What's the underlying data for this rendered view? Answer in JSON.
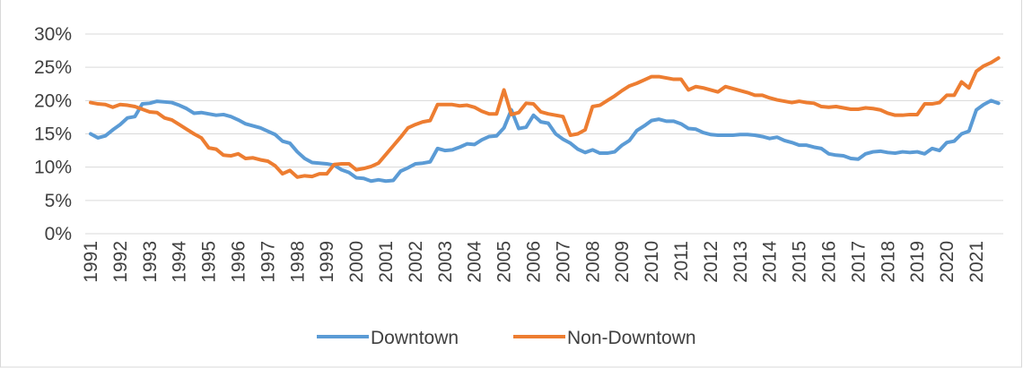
{
  "chart_data": {
    "type": "line",
    "categories": [
      "1991",
      null,
      null,
      null,
      "1992",
      null,
      null,
      null,
      "1993",
      null,
      null,
      null,
      "1994",
      null,
      null,
      null,
      "1995",
      null,
      null,
      null,
      "1996",
      null,
      null,
      null,
      "1997",
      null,
      null,
      null,
      "1998",
      null,
      null,
      null,
      "1999",
      null,
      null,
      null,
      "2000",
      null,
      null,
      null,
      "2001",
      null,
      null,
      null,
      "2002",
      null,
      null,
      null,
      "2003",
      null,
      null,
      null,
      "2004",
      null,
      null,
      null,
      "2005",
      null,
      null,
      null,
      "2006",
      null,
      null,
      null,
      "2007",
      null,
      null,
      null,
      "2008",
      null,
      null,
      null,
      "2009",
      null,
      null,
      null,
      "2010",
      null,
      null,
      null,
      "2011",
      null,
      null,
      null,
      "2012",
      null,
      null,
      null,
      "2013",
      null,
      null,
      null,
      "2014",
      null,
      null,
      null,
      "2015",
      null,
      null,
      null,
      "2016",
      null,
      null,
      null,
      "2017",
      null,
      null,
      null,
      "2018",
      null,
      null,
      null,
      "2019",
      null,
      null,
      null,
      "2020",
      null,
      null,
      null,
      "2021",
      null,
      null,
      null
    ],
    "series": [
      {
        "name": "Downtown",
        "color": "#5b9bd5",
        "values": [
          15.0,
          14.4,
          14.7,
          15.6,
          16.4,
          17.4,
          17.6,
          19.5,
          19.6,
          19.9,
          19.8,
          19.7,
          19.3,
          18.8,
          18.1,
          18.2,
          18.0,
          17.8,
          17.9,
          17.6,
          17.1,
          16.5,
          16.2,
          15.9,
          15.4,
          14.9,
          13.9,
          13.6,
          12.3,
          11.3,
          10.7,
          10.6,
          10.5,
          10.3,
          9.6,
          9.2,
          8.4,
          8.3,
          7.9,
          8.1,
          7.9,
          8.0,
          9.4,
          9.9,
          10.5,
          10.6,
          10.8,
          12.8,
          12.5,
          12.6,
          13.0,
          13.5,
          13.4,
          14.1,
          14.6,
          14.7,
          15.9,
          18.6,
          15.8,
          16.0,
          17.8,
          16.8,
          16.6,
          15.0,
          14.2,
          13.6,
          12.7,
          12.2,
          12.6,
          12.1,
          12.1,
          12.3,
          13.3,
          14.0,
          15.5,
          16.2,
          17.0,
          17.2,
          16.9,
          16.9,
          16.5,
          15.8,
          15.7,
          15.2,
          14.9,
          14.8,
          14.8,
          14.8,
          14.9,
          14.9,
          14.8,
          14.6,
          14.3,
          14.5,
          14.0,
          13.7,
          13.3,
          13.3,
          13.0,
          12.8,
          12.0,
          11.8,
          11.7,
          11.3,
          11.2,
          12.0,
          12.3,
          12.4,
          12.2,
          12.1,
          12.3,
          12.2,
          12.3,
          12.0,
          12.8,
          12.5,
          13.7,
          13.9,
          15.0,
          15.4,
          18.6,
          19.4,
          20.0,
          19.6
        ]
      },
      {
        "name": "Non-Downtown",
        "color": "#ed7d31",
        "values": [
          19.7,
          19.5,
          19.4,
          19.0,
          19.4,
          19.3,
          19.1,
          18.7,
          18.3,
          18.2,
          17.4,
          17.1,
          16.4,
          15.7,
          15.0,
          14.4,
          12.9,
          12.7,
          11.8,
          11.7,
          12.0,
          11.3,
          11.4,
          11.1,
          10.9,
          10.2,
          9.0,
          9.5,
          8.5,
          8.7,
          8.6,
          9.0,
          9.0,
          10.4,
          10.5,
          10.5,
          9.6,
          9.8,
          10.1,
          10.6,
          11.9,
          13.2,
          14.5,
          15.9,
          16.4,
          16.8,
          17.0,
          19.4,
          19.4,
          19.4,
          19.2,
          19.3,
          19.0,
          18.4,
          18.0,
          18.0,
          21.6,
          17.9,
          18.2,
          19.6,
          19.5,
          18.3,
          18.0,
          17.8,
          17.6,
          14.8,
          15.0,
          15.6,
          19.1,
          19.3,
          20.0,
          20.7,
          21.5,
          22.2,
          22.6,
          23.1,
          23.6,
          23.6,
          23.4,
          23.2,
          23.2,
          21.6,
          22.1,
          21.9,
          21.6,
          21.3,
          22.1,
          21.8,
          21.5,
          21.2,
          20.8,
          20.8,
          20.4,
          20.1,
          19.9,
          19.7,
          19.9,
          19.7,
          19.6,
          19.1,
          19.0,
          19.1,
          18.9,
          18.7,
          18.7,
          18.9,
          18.8,
          18.6,
          18.1,
          17.8,
          17.8,
          17.9,
          17.9,
          19.5,
          19.5,
          19.7,
          20.8,
          20.8,
          22.8,
          21.9,
          24.4,
          25.2,
          25.7,
          26.4
        ]
      }
    ],
    "ylim": [
      0,
      30
    ],
    "yticks": [
      {
        "value": 0,
        "label": "0%"
      },
      {
        "value": 5,
        "label": "5%"
      },
      {
        "value": 10,
        "label": "10%"
      },
      {
        "value": 15,
        "label": "15%"
      },
      {
        "value": 20,
        "label": "20%"
      },
      {
        "value": 25,
        "label": "25%"
      },
      {
        "value": 30,
        "label": "30%"
      }
    ],
    "grid": true,
    "legend": "bottom"
  }
}
